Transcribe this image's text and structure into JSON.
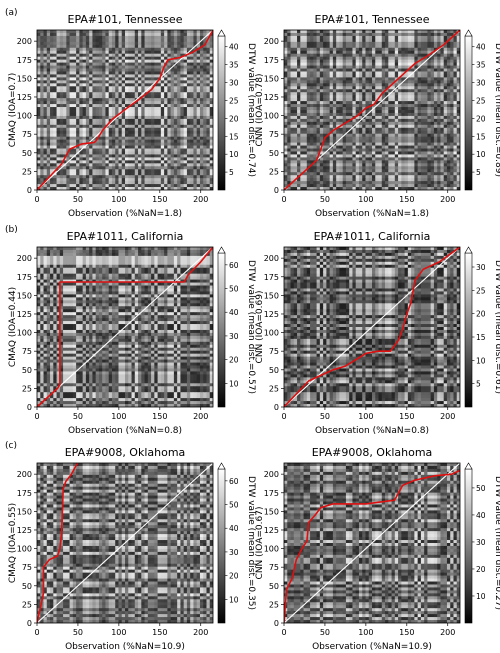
{
  "chart_data": [
    {
      "type": "heatmap",
      "panel_label": "(a)",
      "title": "EPA#101, Tennessee",
      "xlabel": "Observation (%NaN=1.8)",
      "ylabel": "CMAQ (IOA=0.7)",
      "colorbar_label": "DTW value (mean dist.=0.74)",
      "xticks": [
        0,
        50,
        100,
        150,
        200
      ],
      "yticks": [
        0,
        25,
        50,
        75,
        100,
        125,
        150,
        175,
        200
      ],
      "xlim": [
        0,
        215
      ],
      "ylim": [
        0,
        215
      ],
      "colorbar_ticks": [
        5,
        10,
        15,
        20,
        25,
        30,
        35,
        40
      ],
      "colorbar_range": [
        0,
        43
      ],
      "diagonal": true,
      "path_color": "#e01010",
      "warping_path": [
        [
          0,
          0
        ],
        [
          30,
          35
        ],
        [
          40,
          55
        ],
        [
          55,
          62
        ],
        [
          70,
          64
        ],
        [
          72,
          66
        ],
        [
          80,
          80
        ],
        [
          92,
          95
        ],
        [
          110,
          110
        ],
        [
          125,
          122
        ],
        [
          140,
          135
        ],
        [
          150,
          150
        ],
        [
          155,
          165
        ],
        [
          160,
          175
        ],
        [
          175,
          178
        ],
        [
          190,
          185
        ],
        [
          205,
          195
        ],
        [
          215,
          215
        ]
      ]
    },
    {
      "type": "heatmap",
      "panel_label": "",
      "title": "EPA#101, Tennessee",
      "xlabel": "Observation (%NaN=1.8)",
      "ylabel": "CNN (IOA=0.78)",
      "colorbar_label": "DTW value (mean dist.=0.89)",
      "xticks": [
        0,
        50,
        100,
        150,
        200
      ],
      "yticks": [
        0,
        25,
        50,
        75,
        100,
        125,
        150,
        175,
        200
      ],
      "xlim": [
        0,
        215
      ],
      "ylim": [
        0,
        215
      ],
      "colorbar_ticks": [
        5,
        10,
        15,
        20,
        25,
        30,
        35,
        40
      ],
      "colorbar_range": [
        0,
        43
      ],
      "diagonal": true,
      "path_color": "#e01010",
      "warping_path": [
        [
          0,
          0
        ],
        [
          20,
          20
        ],
        [
          40,
          40
        ],
        [
          45,
          55
        ],
        [
          50,
          70
        ],
        [
          60,
          80
        ],
        [
          75,
          90
        ],
        [
          90,
          100
        ],
        [
          100,
          110
        ],
        [
          110,
          115
        ],
        [
          120,
          130
        ],
        [
          135,
          145
        ],
        [
          145,
          155
        ],
        [
          160,
          170
        ],
        [
          175,
          180
        ],
        [
          195,
          195
        ],
        [
          215,
          215
        ]
      ]
    },
    {
      "type": "heatmap",
      "panel_label": "(b)",
      "title": "EPA#1011, California",
      "xlabel": "Observation (%NaN=0.8)",
      "ylabel": "CMAQ (IOA=0.44)",
      "colorbar_label": "DTW value (mean dist.=0.57)",
      "xticks": [
        0,
        50,
        100,
        150,
        200
      ],
      "yticks": [
        0,
        25,
        50,
        75,
        100,
        125,
        150,
        175,
        200
      ],
      "xlim": [
        0,
        215
      ],
      "ylim": [
        0,
        215
      ],
      "colorbar_ticks": [
        10,
        20,
        30,
        40,
        50,
        60
      ],
      "colorbar_range": [
        0,
        65
      ],
      "diagonal": true,
      "path_color": "#e01010",
      "warping_path": [
        [
          0,
          0
        ],
        [
          25,
          25
        ],
        [
          28,
          30
        ],
        [
          28,
          100
        ],
        [
          28,
          168
        ],
        [
          100,
          168
        ],
        [
          180,
          168
        ],
        [
          185,
          178
        ],
        [
          200,
          195
        ],
        [
          215,
          215
        ]
      ]
    },
    {
      "type": "heatmap",
      "panel_label": "",
      "title": "EPA#1011, California",
      "xlabel": "Observation (%NaN=0.8)",
      "ylabel": "CNN (IOA=0.69)",
      "colorbar_label": "DTW value (mean dist.=0.61)",
      "xticks": [
        0,
        50,
        100,
        150,
        200
      ],
      "yticks": [
        0,
        25,
        50,
        75,
        100,
        125,
        150,
        175,
        200
      ],
      "xlim": [
        0,
        215
      ],
      "ylim": [
        0,
        215
      ],
      "colorbar_ticks": [
        5,
        10,
        15,
        20,
        25,
        30
      ],
      "colorbar_range": [
        0,
        33
      ],
      "diagonal": true,
      "path_color": "#e01010",
      "warping_path": [
        [
          0,
          0
        ],
        [
          30,
          35
        ],
        [
          50,
          45
        ],
        [
          60,
          50
        ],
        [
          75,
          55
        ],
        [
          90,
          65
        ],
        [
          100,
          72
        ],
        [
          115,
          75
        ],
        [
          130,
          75
        ],
        [
          140,
          90
        ],
        [
          145,
          105
        ],
        [
          150,
          125
        ],
        [
          155,
          140
        ],
        [
          160,
          170
        ],
        [
          170,
          185
        ],
        [
          190,
          195
        ],
        [
          215,
          215
        ]
      ]
    },
    {
      "type": "heatmap",
      "panel_label": "(c)",
      "title": "EPA#9008, Oklahoma",
      "xlabel": "Observation (%NaN=10.9)",
      "ylabel": "CMAQ (IOA=0.55)",
      "colorbar_label": "DTW value (mean dist.=0.35)",
      "xticks": [
        0,
        50,
        100,
        150,
        200
      ],
      "yticks": [
        0,
        25,
        50,
        75,
        100,
        125,
        150,
        175,
        200
      ],
      "xlim": [
        0,
        215
      ],
      "ylim": [
        0,
        215
      ],
      "colorbar_ticks": [
        10,
        20,
        30,
        40,
        50,
        60
      ],
      "colorbar_range": [
        0,
        65
      ],
      "diagonal": true,
      "path_color": "#e01010",
      "warping_path": [
        [
          0,
          0
        ],
        [
          5,
          25
        ],
        [
          8,
          40
        ],
        [
          8,
          75
        ],
        [
          15,
          85
        ],
        [
          25,
          90
        ],
        [
          28,
          100
        ],
        [
          30,
          120
        ],
        [
          32,
          180
        ],
        [
          35,
          190
        ],
        [
          42,
          200
        ],
        [
          48,
          212
        ],
        [
          50,
          215
        ]
      ]
    },
    {
      "type": "heatmap",
      "panel_label": "",
      "title": "EPA#9008, Oklahoma",
      "xlabel": "Observation (%NaN=10.9)",
      "ylabel": "CNN (IOA=0.67)",
      "colorbar_label": "DTW value (mean dist.=0.27)",
      "xticks": [
        0,
        50,
        100,
        150,
        200
      ],
      "yticks": [
        0,
        25,
        50,
        75,
        100,
        125,
        150,
        175,
        200
      ],
      "xlim": [
        0,
        215
      ],
      "ylim": [
        0,
        215
      ],
      "colorbar_ticks": [
        10,
        20,
        30,
        40,
        50
      ],
      "colorbar_range": [
        0,
        57
      ],
      "diagonal": true,
      "path_color": "#e01010",
      "warping_path": [
        [
          0,
          0
        ],
        [
          3,
          45
        ],
        [
          10,
          60
        ],
        [
          15,
          85
        ],
        [
          22,
          100
        ],
        [
          28,
          110
        ],
        [
          30,
          135
        ],
        [
          38,
          145
        ],
        [
          45,
          155
        ],
        [
          60,
          160
        ],
        [
          100,
          160
        ],
        [
          135,
          165
        ],
        [
          145,
          185
        ],
        [
          160,
          192
        ],
        [
          185,
          198
        ],
        [
          205,
          200
        ],
        [
          215,
          205
        ]
      ]
    }
  ]
}
